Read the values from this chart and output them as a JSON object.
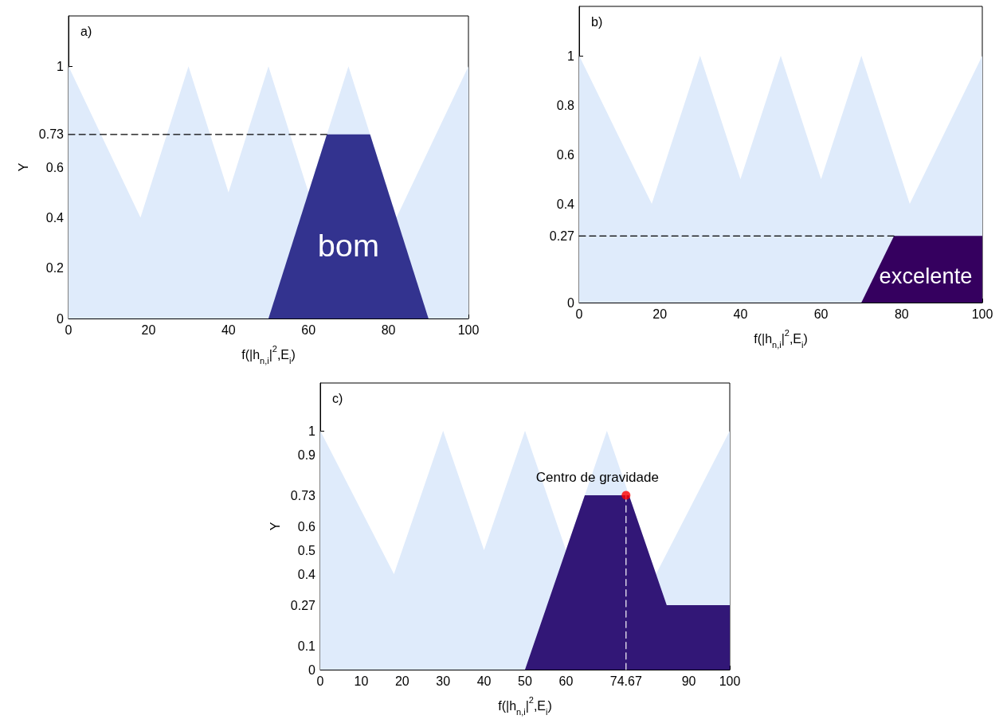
{
  "chart_data": [
    {
      "type": "area",
      "title": "a)",
      "xlabel": "f(|h$_{n,i}$|$^{2}$,E$_{i}$)",
      "ylabel": "Y",
      "xlim": [
        0,
        100
      ],
      "ylim": [
        0,
        1.2
      ],
      "xticks": [
        0,
        20,
        40,
        60,
        80,
        100
      ],
      "yticks": [
        0,
        0.2,
        0.4,
        0.6,
        0.73,
        1
      ],
      "grid": false,
      "legend": false,
      "series": [
        {
          "type": "area",
          "color": "#dfebfb",
          "x": [
            0,
            18,
            30,
            40,
            50,
            60,
            70,
            82,
            100
          ],
          "values": [
            1,
            0.4,
            1,
            0.5,
            1,
            0.5,
            1,
            0.4,
            1
          ]
        },
        {
          "type": "area",
          "name": "bom",
          "color": "#33338f",
          "x": [
            50,
            64.6,
            75.4,
            90
          ],
          "values": [
            0,
            0.73,
            0.73,
            0
          ]
        },
        {
          "type": "line",
          "color": "#000000",
          "line_style": "dashed",
          "x": [
            0,
            64.6
          ],
          "values": [
            0.73,
            0.73
          ]
        }
      ]
    },
    {
      "type": "area",
      "title": "b)",
      "xlabel": "f(|h$_{n,i}$|$^{2}$,E$_{i}$)",
      "xlim": [
        0,
        100
      ],
      "ylim": [
        0,
        1.2
      ],
      "xticks": [
        0,
        20,
        40,
        60,
        80,
        100
      ],
      "yticks": [
        0,
        0.27,
        0.4,
        0.6,
        0.8,
        1
      ],
      "grid": false,
      "legend": false,
      "series": [
        {
          "type": "area",
          "color": "#dfebfb",
          "x": [
            0,
            18,
            30,
            40,
            50,
            60,
            70,
            82,
            100
          ],
          "values": [
            1,
            0.4,
            1,
            0.5,
            1,
            0.5,
            1,
            0.4,
            1
          ]
        },
        {
          "type": "area",
          "name": "excelente",
          "color": "#35005f",
          "x": [
            70,
            78.1,
            100
          ],
          "values": [
            0,
            0.27,
            0.27
          ]
        },
        {
          "type": "line",
          "color": "#000000",
          "line_style": "dashed",
          "x": [
            0,
            78.1
          ],
          "values": [
            0.27,
            0.27
          ]
        }
      ]
    },
    {
      "type": "area",
      "title": "c)",
      "xlabel": "f(|h$_{n,i}$|$^{2}$,E$_{i}$)",
      "ylabel": "Y",
      "xlim": [
        0,
        100
      ],
      "ylim": [
        0,
        1.2
      ],
      "xticks": [
        0,
        10,
        20,
        30,
        40,
        50,
        60,
        74.67,
        90,
        100
      ],
      "yticks": [
        0,
        0.1,
        0.27,
        0.4,
        0.5,
        0.6,
        0.73,
        0.9,
        1
      ],
      "grid": false,
      "legend": false,
      "annotations": [
        {
          "text": "Centro de gravidade",
          "x": 74.67,
          "y": 0.73
        }
      ],
      "series": [
        {
          "type": "area",
          "color": "#dfebfb",
          "x": [
            0,
            18,
            30,
            40,
            50,
            60,
            70,
            82,
            100
          ],
          "values": [
            1,
            0.4,
            1,
            0.5,
            1,
            0.5,
            1,
            0.4,
            1
          ]
        },
        {
          "type": "area",
          "color": "#321777",
          "x": [
            50,
            64.6,
            75.4,
            84.6,
            100
          ],
          "values": [
            0,
            0.73,
            0.73,
            0.27,
            0.27
          ]
        },
        {
          "type": "line",
          "color": "#ffffff",
          "line_style": "dashed",
          "x": [
            74.67,
            74.67
          ],
          "values": [
            0,
            0.73
          ]
        },
        {
          "type": "scatter",
          "color": "#ff0000",
          "marker": "circle",
          "x": [
            74.67
          ],
          "values": [
            0.73
          ]
        }
      ]
    }
  ]
}
